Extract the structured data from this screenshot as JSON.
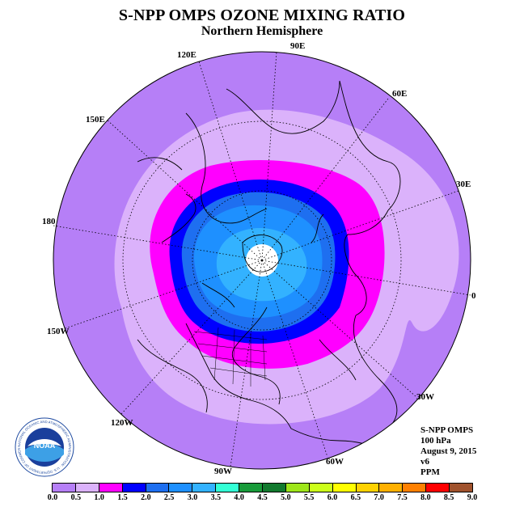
{
  "title": "S-NPP OMPS OZONE MIXING RATIO",
  "subtitle": "Northern Hemisphere",
  "longitude_labels": {
    "lon_90e": "90E",
    "lon_120e": "120E",
    "lon_60e": "60E",
    "lon_150e": "150E",
    "lon_30e": "30E",
    "lon_180": "180",
    "lon_0": "0",
    "lon_150w": "150W",
    "lon_30w": "30W",
    "lon_120w": "120W",
    "lon_60w": "60W",
    "lon_90w": "90W"
  },
  "info": {
    "instrument": "S-NPP OMPS",
    "level": "100 hPa",
    "date": "August 9, 2015",
    "version": "v6",
    "units": "PPM"
  },
  "colorbar": {
    "ticks": [
      "0.0",
      "0.5",
      "1.0",
      "1.5",
      "2.0",
      "2.5",
      "3.0",
      "3.5",
      "4.0",
      "4.5",
      "5.0",
      "5.5",
      "6.0",
      "6.5",
      "7.0",
      "7.5",
      "8.0",
      "8.5",
      "9.0"
    ],
    "colors": [
      "#b67ff7",
      "#dbb2fb",
      "#ff00ff",
      "#0000ff",
      "#1e6ff0",
      "#1e90ff",
      "#33b2ff",
      "#33ffd5",
      "#189b3a",
      "#127a2e",
      "#9ee61a",
      "#ccff1a",
      "#ffff00",
      "#ffd200",
      "#ffb000",
      "#ff8000",
      "#ff0000",
      "#a0522d"
    ]
  },
  "logo": {
    "name": "NOAA",
    "ring_text": "NATIONAL OCEANIC AND ATMOSPHERIC ADMINISTRATION · U.S. DEPARTMENT OF COMMERCE"
  },
  "map_colors": {
    "outer": "#b67ff7",
    "light": "#dbb2fb",
    "magenta": "#ff00ff",
    "blue": "#0000ff",
    "mid_blue": "#1e6ff0",
    "light_blue": "#1e90ff",
    "sky": "#33b2ff",
    "no_data": "#ffffff"
  }
}
